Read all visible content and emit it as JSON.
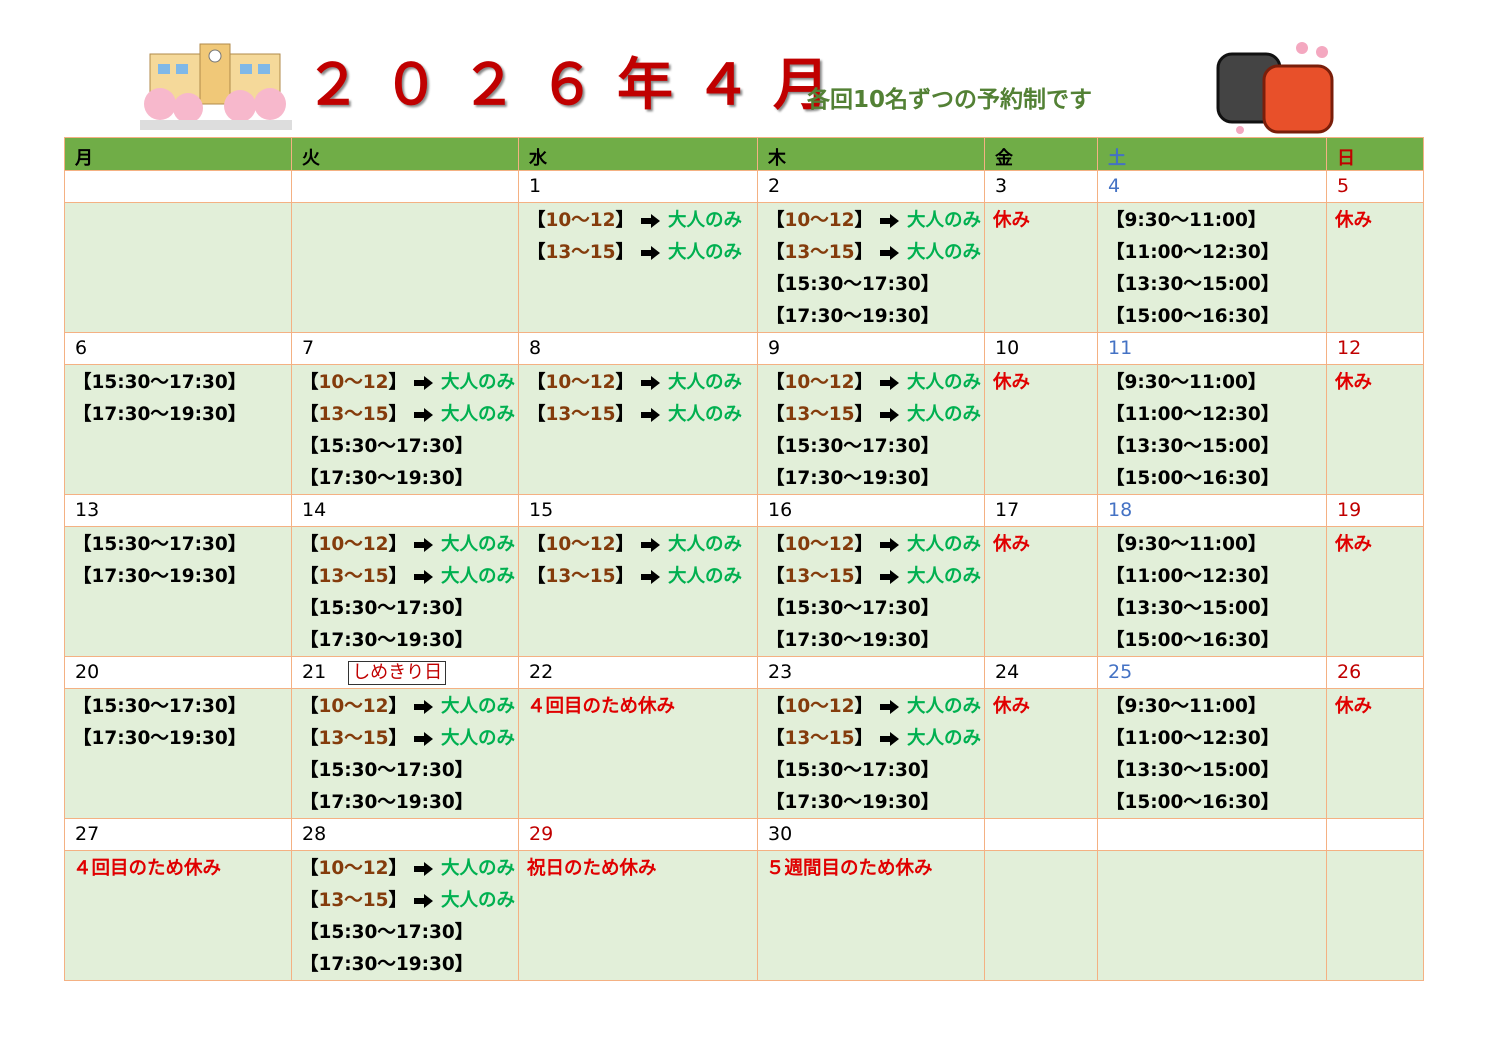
{
  "header": {
    "title": "２０２６年４月",
    "subtitle": "各回10名ずつの予約制です"
  },
  "weekdays": [
    {
      "label": "月"
    },
    {
      "label": "火"
    },
    {
      "label": "水"
    },
    {
      "label": "木"
    },
    {
      "label": "金"
    },
    {
      "label": "土",
      "color": "#4472c4"
    },
    {
      "label": "日",
      "color": "#c00000"
    }
  ],
  "weeks": [
    {
      "days": [
        null,
        null,
        {
          "date": "1",
          "lines": [
            {
              "slot": "【10～12】",
              "note": "大人のみ"
            },
            {
              "slot": "【13～15】",
              "note": "大人のみ"
            }
          ]
        },
        {
          "date": "2",
          "lines": [
            {
              "slot": "【10～12】",
              "note": "大人のみ"
            },
            {
              "slot": "【13～15】",
              "note": "大人のみ"
            },
            {
              "slot": "【15:30～17:30】"
            },
            {
              "slot": "【17:30～19:30】"
            }
          ]
        },
        {
          "date": "3",
          "lines": [
            {
              "closed": "休み"
            }
          ]
        },
        {
          "date": "4",
          "lines": [
            {
              "slot": "【9:30～11:00】"
            },
            {
              "slot": "【11:00～12:30】"
            },
            {
              "slot": "【13:30～15:00】"
            },
            {
              "slot": "【15:00～16:30】"
            }
          ]
        },
        {
          "date": "5",
          "lines": [
            {
              "closed": "休み"
            }
          ]
        }
      ]
    },
    {
      "days": [
        {
          "date": "6",
          "lines": [
            {
              "slot": "【15:30～17:30】"
            },
            {
              "slot": "【17:30～19:30】"
            }
          ]
        },
        {
          "date": "7",
          "lines": [
            {
              "slot": "【10～12】",
              "note": "大人のみ"
            },
            {
              "slot": "【13～15】",
              "note": "大人のみ"
            },
            {
              "slot": "【15:30～17:30】"
            },
            {
              "slot": "【17:30～19:30】"
            }
          ]
        },
        {
          "date": "8",
          "lines": [
            {
              "slot": "【10～12】",
              "note": "大人のみ"
            },
            {
              "slot": "【13～15】",
              "note": "大人のみ"
            }
          ]
        },
        {
          "date": "9",
          "lines": [
            {
              "slot": "【10～12】",
              "note": "大人のみ"
            },
            {
              "slot": "【13～15】",
              "note": "大人のみ"
            },
            {
              "slot": "【15:30～17:30】"
            },
            {
              "slot": "【17:30～19:30】"
            }
          ]
        },
        {
          "date": "10",
          "lines": [
            {
              "closed": "休み"
            }
          ]
        },
        {
          "date": "11",
          "lines": [
            {
              "slot": "【9:30～11:00】"
            },
            {
              "slot": "【11:00～12:30】"
            },
            {
              "slot": "【13:30～15:00】"
            },
            {
              "slot": "【15:00～16:30】"
            }
          ]
        },
        {
          "date": "12",
          "lines": [
            {
              "closed": "休み"
            }
          ]
        }
      ]
    },
    {
      "days": [
        {
          "date": "13",
          "lines": [
            {
              "slot": "【15:30～17:30】"
            },
            {
              "slot": "【17:30～19:30】"
            }
          ]
        },
        {
          "date": "14",
          "lines": [
            {
              "slot": "【10～12】",
              "note": "大人のみ"
            },
            {
              "slot": "【13～15】",
              "note": "大人のみ"
            },
            {
              "slot": "【15:30～17:30】"
            },
            {
              "slot": "【17:30～19:30】"
            }
          ]
        },
        {
          "date": "15",
          "lines": [
            {
              "slot": "【10～12】",
              "note": "大人のみ"
            },
            {
              "slot": "【13～15】",
              "note": "大人のみ"
            }
          ]
        },
        {
          "date": "16",
          "lines": [
            {
              "slot": "【10～12】",
              "note": "大人のみ"
            },
            {
              "slot": "【13～15】",
              "note": "大人のみ"
            },
            {
              "slot": "【15:30～17:30】"
            },
            {
              "slot": "【17:30～19:30】"
            }
          ]
        },
        {
          "date": "17",
          "lines": [
            {
              "closed": "休み"
            }
          ]
        },
        {
          "date": "18",
          "lines": [
            {
              "slot": "【9:30～11:00】"
            },
            {
              "slot": "【11:00～12:30】"
            },
            {
              "slot": "【13:30～15:00】"
            },
            {
              "slot": "【15:00～16:30】"
            }
          ]
        },
        {
          "date": "19",
          "lines": [
            {
              "closed": "休み"
            }
          ]
        }
      ]
    },
    {
      "days": [
        {
          "date": "20",
          "lines": [
            {
              "slot": "【15:30～17:30】"
            },
            {
              "slot": "【17:30～19:30】"
            }
          ]
        },
        {
          "date": "21",
          "tag": "しめきり日",
          "lines": [
            {
              "slot": "【10～12】",
              "note": "大人のみ"
            },
            {
              "slot": "【13～15】",
              "note": "大人のみ"
            },
            {
              "slot": "【15:30～17:30】"
            },
            {
              "slot": "【17:30～19:30】"
            }
          ]
        },
        {
          "date": "22",
          "lines": [
            {
              "closed": "４回目のため休み"
            }
          ]
        },
        {
          "date": "23",
          "lines": [
            {
              "slot": "【10～12】",
              "note": "大人のみ"
            },
            {
              "slot": "【13～15】",
              "note": "大人のみ"
            },
            {
              "slot": "【15:30～17:30】"
            },
            {
              "slot": "【17:30～19:30】"
            }
          ]
        },
        {
          "date": "24",
          "lines": [
            {
              "closed": "休み"
            }
          ]
        },
        {
          "date": "25",
          "lines": [
            {
              "slot": "【9:30～11:00】"
            },
            {
              "slot": "【11:00～12:30】"
            },
            {
              "slot": "【13:30～15:00】"
            },
            {
              "slot": "【15:00～16:30】"
            }
          ]
        },
        {
          "date": "26",
          "lines": [
            {
              "closed": "休み"
            }
          ]
        }
      ]
    },
    {
      "days": [
        {
          "date": "27",
          "lines": [
            {
              "closed": "４回目のため休み"
            }
          ]
        },
        {
          "date": "28",
          "lines": [
            {
              "slot": "【10～12】",
              "note": "大人のみ"
            },
            {
              "slot": "【13～15】",
              "note": "大人のみ"
            },
            {
              "slot": "【15:30～17:30】"
            },
            {
              "slot": "【17:30～19:30】"
            }
          ]
        },
        {
          "date": "29",
          "date_color": "#c00000",
          "lines": [
            {
              "closed": "祝日のため休み"
            }
          ]
        },
        {
          "date": "30",
          "lines": [
            {
              "closed": "５週間目のため休み"
            }
          ]
        },
        null,
        null,
        null
      ]
    }
  ]
}
